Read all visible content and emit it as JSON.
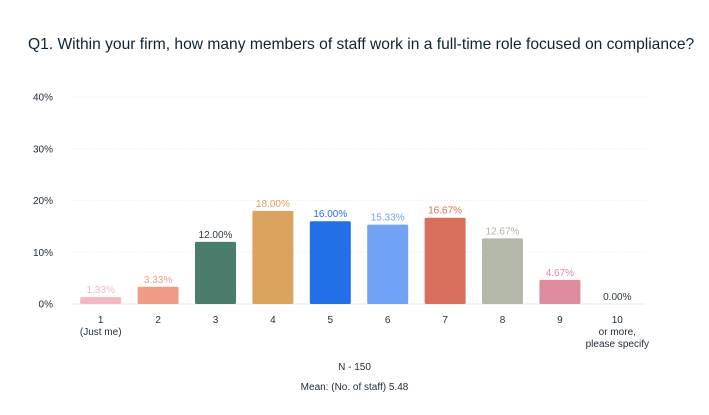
{
  "chart_data": {
    "type": "bar",
    "title": "Q1. Within your firm, how many members of staff work in a full-time role focused on compliance?",
    "categories": [
      [
        "1",
        "(Just me)"
      ],
      [
        "2"
      ],
      [
        "3"
      ],
      [
        "4"
      ],
      [
        "5"
      ],
      [
        "6"
      ],
      [
        "7"
      ],
      [
        "8"
      ],
      [
        "9"
      ],
      [
        "10",
        "or more,",
        "please specify"
      ]
    ],
    "values": [
      1.33,
      3.33,
      12.0,
      18.0,
      16.0,
      15.33,
      16.67,
      12.67,
      4.67,
      0.0
    ],
    "data_labels": [
      "1.33%",
      "3.33%",
      "12.00%",
      "18.00%",
      "16.00%",
      "15.33%",
      "16.67%",
      "12.67%",
      "4.67%",
      "0.00%"
    ],
    "bar_colors": [
      "#f4b8c4",
      "#ef9c86",
      "#4a7d6b",
      "#dca35e",
      "#2170e8",
      "#72a2f4",
      "#d6705a",
      "#b3b8a9",
      "#de8b9c",
      "#c8c8c8"
    ],
    "label_colors": [
      "#f4b8c4",
      "#ef9c86",
      "#2d3a45",
      "#dca35e",
      "#2170e8",
      "#72a2f4",
      "#d6705a",
      "#b3b8a9",
      "#de8b9c",
      "#2d3a45"
    ],
    "yticks": [
      "0%",
      "10%",
      "20%",
      "30%",
      "40%"
    ],
    "ylim": [
      0,
      40
    ],
    "grid": true,
    "xlabel": "",
    "ylabel": ""
  },
  "footnotes": {
    "n": "N - 150",
    "mean": "Mean: (No. of staff) 5.48"
  }
}
